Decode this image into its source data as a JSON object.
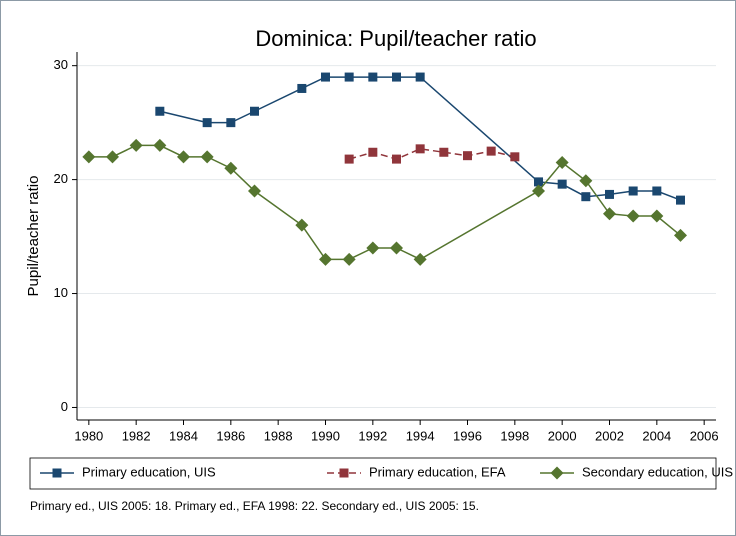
{
  "chart_data": {
    "type": "line",
    "title": "Dominica: Pupil/teacher ratio",
    "ylabel": "Pupil/teacher ratio",
    "note": "Primary ed., UIS 2005: 18. Primary ed., EFA 1998: 22. Secondary ed., UIS 2005: 15.",
    "xlim": [
      1979.5,
      2006.5
    ],
    "xticks": [
      1980,
      1982,
      1984,
      1986,
      1988,
      1990,
      1992,
      1994,
      1996,
      1998,
      2000,
      2002,
      2004,
      2006
    ],
    "ylim": [
      -1.1,
      31.2
    ],
    "yticks": [
      0,
      10,
      20,
      30
    ],
    "grid": true,
    "legend": "bottom",
    "series": [
      {
        "name": "Primary education, UIS",
        "color": "#1a476f",
        "marker": "square",
        "dashed": false,
        "x": [
          1983,
          1985,
          1986,
          1987,
          1989,
          1990,
          1991,
          1992,
          1993,
          1994,
          1999,
          2000,
          2001,
          2002,
          2003,
          2004,
          2005
        ],
        "values": [
          26,
          25,
          25,
          26,
          28,
          29,
          29,
          29,
          29,
          29,
          19.8,
          19.6,
          18.5,
          18.7,
          19,
          19,
          18.2
        ]
      },
      {
        "name": "Primary education, EFA",
        "color": "#90353b",
        "marker": "square",
        "dashed": true,
        "x": [
          1991,
          1992,
          1993,
          1994,
          1995,
          1996,
          1997,
          1998
        ],
        "values": [
          21.8,
          22.4,
          21.8,
          22.7,
          22.4,
          22.1,
          22.5,
          22
        ]
      },
      {
        "name": "Secondary education, UIS",
        "color": "#55752f",
        "marker": "diamond",
        "dashed": false,
        "x": [
          1980,
          1981,
          1982,
          1983,
          1984,
          1985,
          1986,
          1987,
          1989,
          1990,
          1991,
          1992,
          1993,
          1994,
          1999,
          2000,
          2001,
          2002,
          2003,
          2004,
          2005
        ],
        "values": [
          22,
          22,
          23,
          23,
          22,
          22,
          21,
          19,
          16,
          13,
          13,
          14,
          14,
          13,
          19,
          21.5,
          19.9,
          17,
          16.8,
          16.8,
          15.1
        ]
      }
    ]
  }
}
